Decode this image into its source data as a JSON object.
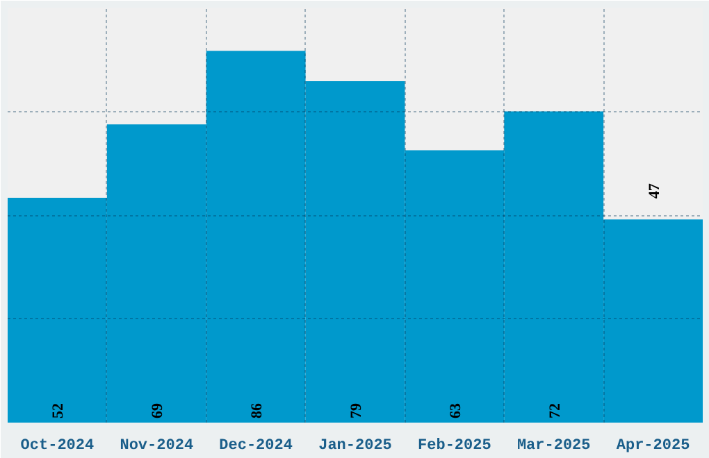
{
  "chart_data": {
    "type": "bar",
    "categories": [
      "Oct-2024",
      "Nov-2024",
      "Dec-2024",
      "Jan-2025",
      "Feb-2025",
      "Mar-2025",
      "Apr-2025"
    ],
    "values": [
      52,
      69,
      86,
      79,
      63,
      72,
      47
    ],
    "color": "#0099cc",
    "ylim": [
      0,
      96
    ],
    "yticks": [
      {
        "value": 0,
        "label": null
      },
      {
        "value": 24,
        "label": null
      },
      {
        "value": 48,
        "label": null
      },
      {
        "value": 72,
        "label": null
      },
      {
        "value": 96,
        "label": null
      }
    ],
    "grid": true,
    "data_labels": true,
    "tick_labels": "x"
  }
}
